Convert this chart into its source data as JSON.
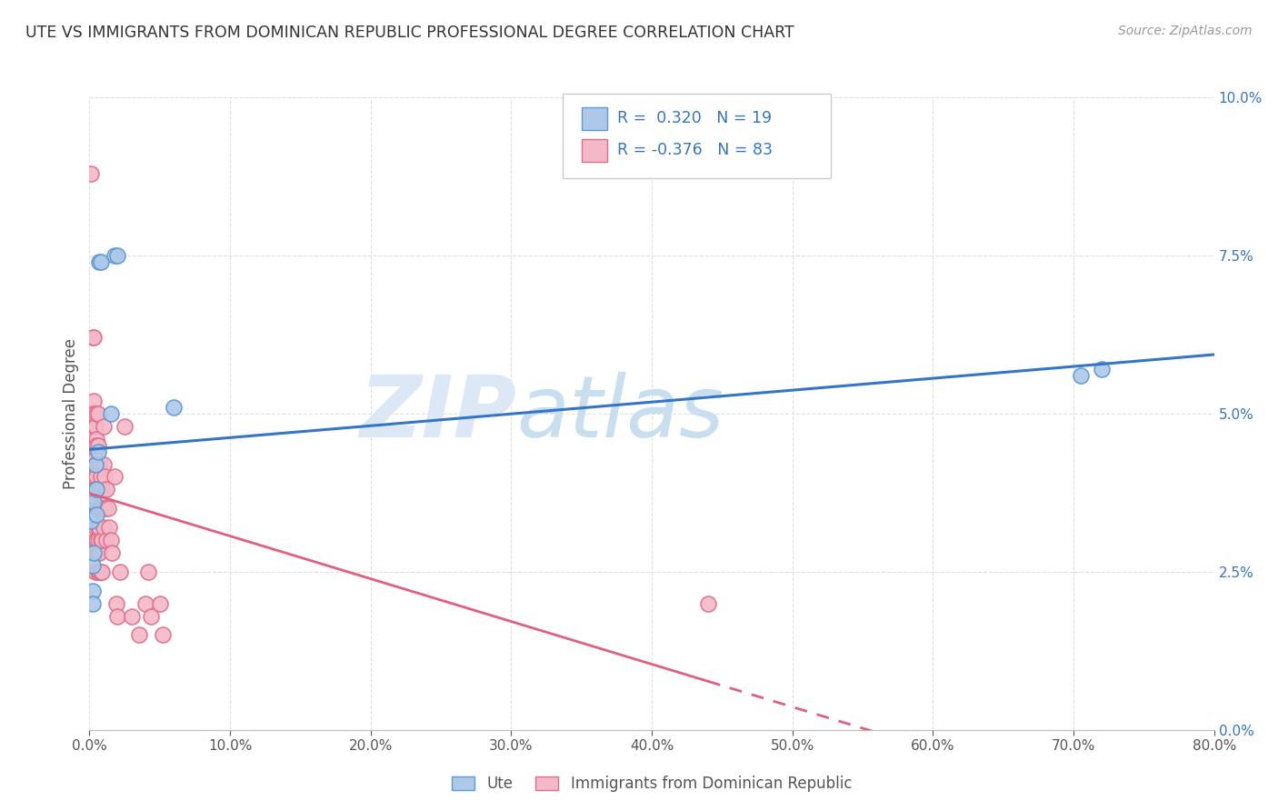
{
  "title": "UTE VS IMMIGRANTS FROM DOMINICAN REPUBLIC PROFESSIONAL DEGREE CORRELATION CHART",
  "source": "Source: ZipAtlas.com",
  "ylabel": "Professional Degree",
  "legend_bottom_labels": [
    "Ute",
    "Immigrants from Dominican Republic"
  ],
  "ute_color": "#adc8e8",
  "ute_edge_color": "#5b9bd5",
  "dr_color": "#f4b8c8",
  "dr_edge_color": "#e0708a",
  "line_ute_color": "#3575c8",
  "line_dr_color": "#e06080",
  "R_ute": 0.32,
  "N_ute": 19,
  "R_dr": -0.376,
  "N_dr": 83,
  "xlim": [
    0.0,
    0.8
  ],
  "ylim": [
    0.0,
    0.1
  ],
  "xticks": [
    0.0,
    0.1,
    0.2,
    0.3,
    0.4,
    0.5,
    0.6,
    0.7,
    0.8
  ],
  "yticks": [
    0.0,
    0.025,
    0.05,
    0.075,
    0.1
  ],
  "ute_x": [
    0.001,
    0.001,
    0.002,
    0.002,
    0.002,
    0.003,
    0.003,
    0.004,
    0.005,
    0.005,
    0.006,
    0.007,
    0.008,
    0.015,
    0.018,
    0.02,
    0.06,
    0.705,
    0.72
  ],
  "ute_y": [
    0.037,
    0.033,
    0.026,
    0.022,
    0.02,
    0.036,
    0.028,
    0.042,
    0.034,
    0.038,
    0.044,
    0.074,
    0.074,
    0.05,
    0.075,
    0.075,
    0.051,
    0.056,
    0.057
  ],
  "dr_x": [
    0.001,
    0.001,
    0.002,
    0.002,
    0.002,
    0.002,
    0.002,
    0.003,
    0.003,
    0.003,
    0.003,
    0.003,
    0.003,
    0.003,
    0.003,
    0.003,
    0.003,
    0.004,
    0.004,
    0.004,
    0.004,
    0.004,
    0.004,
    0.004,
    0.004,
    0.004,
    0.004,
    0.005,
    0.005,
    0.005,
    0.005,
    0.005,
    0.005,
    0.005,
    0.005,
    0.005,
    0.006,
    0.006,
    0.006,
    0.006,
    0.006,
    0.006,
    0.006,
    0.006,
    0.006,
    0.007,
    0.007,
    0.007,
    0.007,
    0.007,
    0.007,
    0.008,
    0.008,
    0.008,
    0.008,
    0.009,
    0.009,
    0.009,
    0.009,
    0.01,
    0.01,
    0.01,
    0.011,
    0.011,
    0.012,
    0.012,
    0.013,
    0.014,
    0.015,
    0.016,
    0.018,
    0.019,
    0.02,
    0.022,
    0.025,
    0.03,
    0.035,
    0.04,
    0.042,
    0.044,
    0.05,
    0.052,
    0.44
  ],
  "dr_y": [
    0.088,
    0.05,
    0.062,
    0.05,
    0.045,
    0.042,
    0.038,
    0.062,
    0.052,
    0.048,
    0.04,
    0.038,
    0.035,
    0.05,
    0.045,
    0.042,
    0.038,
    0.048,
    0.043,
    0.04,
    0.038,
    0.032,
    0.03,
    0.028,
    0.025,
    0.042,
    0.038,
    0.05,
    0.046,
    0.042,
    0.04,
    0.038,
    0.035,
    0.03,
    0.028,
    0.045,
    0.042,
    0.038,
    0.035,
    0.032,
    0.03,
    0.028,
    0.025,
    0.05,
    0.045,
    0.042,
    0.038,
    0.036,
    0.032,
    0.028,
    0.025,
    0.04,
    0.035,
    0.03,
    0.025,
    0.038,
    0.035,
    0.03,
    0.025,
    0.042,
    0.048,
    0.032,
    0.04,
    0.035,
    0.038,
    0.03,
    0.035,
    0.032,
    0.03,
    0.028,
    0.04,
    0.02,
    0.018,
    0.025,
    0.048,
    0.018,
    0.015,
    0.02,
    0.025,
    0.018,
    0.02,
    0.015,
    0.02
  ],
  "watermark_zip": "ZIP",
  "watermark_atlas": "atlas",
  "background_color": "#ffffff",
  "grid_color": "#e0e0e0",
  "tick_label_color": "#555555",
  "right_tick_color": "#3575c8"
}
